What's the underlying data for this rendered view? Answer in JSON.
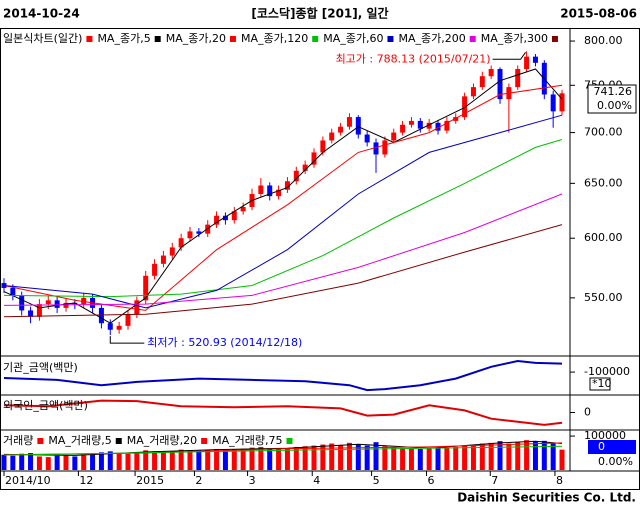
{
  "header": {
    "start": "2014-10-24",
    "title": "[코스닥]종합 [201], 일간",
    "end": "2015-08-06"
  },
  "footer": "Daishin Securities Co. Ltd.",
  "chart_data": [
    {
      "type": "candlestick",
      "name": "일본식차트(일간)",
      "color": "#ff0000",
      "down_color": "#0000ff",
      "log_scale": true,
      "xlim": [
        -0.45,
        63.9
      ],
      "ylim": [
        506,
        813
      ],
      "yticks": [
        {
          "value": 800,
          "label": "800.00"
        },
        {
          "value": 750,
          "label": "750.00"
        },
        {
          "value": 700,
          "label": "700.00"
        },
        {
          "value": 650,
          "label": "650.00"
        },
        {
          "value": 600,
          "label": "600.00"
        },
        {
          "value": 550,
          "label": "550.00"
        }
      ],
      "open": [
        562,
        558,
        552,
        540,
        535,
        545,
        548,
        542,
        546,
        545,
        550,
        542,
        530,
        525,
        528,
        537,
        548,
        568,
        578,
        585,
        592,
        600,
        606,
        604,
        612,
        620,
        616,
        624,
        628,
        640,
        648,
        638,
        644,
        652,
        662,
        668,
        680,
        692,
        700,
        706,
        716,
        698,
        690,
        678,
        692,
        700,
        708,
        712,
        704,
        710,
        702,
        712,
        716,
        738,
        748,
        760,
        768,
        735,
        748,
        768,
        782,
        775,
        740,
        722
      ],
      "high": [
        566,
        561,
        555,
        543,
        549,
        552,
        551,
        550,
        549,
        554,
        553,
        545,
        533,
        531,
        540,
        551,
        572,
        582,
        589,
        596,
        604,
        610,
        609,
        616,
        624,
        623,
        628,
        632,
        645,
        655,
        651,
        648,
        656,
        666,
        672,
        684,
        696,
        704,
        710,
        720,
        718,
        702,
        694,
        696,
        704,
        712,
        716,
        715,
        714,
        713,
        716,
        720,
        742,
        752,
        765,
        772,
        770,
        752,
        772,
        788.13,
        785,
        778,
        744,
        745
      ],
      "low": [
        554,
        548,
        536,
        530,
        532,
        541,
        538,
        539,
        541,
        542,
        538,
        526,
        520.93,
        522,
        525,
        534,
        545,
        565,
        575,
        582,
        589,
        597,
        601,
        601,
        609,
        612,
        613,
        621,
        625,
        637,
        634,
        635,
        641,
        649,
        659,
        665,
        677,
        689,
        697,
        703,
        694,
        686,
        660,
        675,
        689,
        697,
        705,
        700,
        701,
        698,
        699,
        709,
        713,
        735,
        745,
        757,
        730,
        700,
        745,
        765,
        771,
        735,
        705,
        718
      ],
      "close": [
        558,
        552,
        540,
        535,
        545,
        548,
        542,
        546,
        545,
        550,
        542,
        530,
        525,
        528,
        537,
        548,
        568,
        578,
        585,
        592,
        600,
        606,
        604,
        612,
        620,
        616,
        624,
        628,
        640,
        648,
        638,
        644,
        652,
        662,
        668,
        680,
        692,
        700,
        706,
        716,
        698,
        690,
        678,
        692,
        700,
        708,
        712,
        704,
        710,
        702,
        712,
        716,
        738,
        748,
        760,
        768,
        735,
        748,
        768,
        782,
        775,
        740,
        722,
        741.26
      ],
      "change_label": "0.00%",
      "series": [
        {
          "name": "MA_종가,5",
          "color": "#000000",
          "x": [
            0,
            4,
            8,
            12,
            16,
            20,
            24,
            28,
            32,
            36,
            40,
            44,
            48,
            52,
            56,
            60,
            63
          ],
          "values": [
            555,
            542,
            546,
            530,
            550,
            592,
            614,
            634,
            646,
            680,
            706,
            690,
            708,
            726,
            755,
            768,
            735
          ]
        },
        {
          "name": "MA_종가,20",
          "color": "#ff0000",
          "x": [
            0,
            8,
            16,
            24,
            32,
            40,
            48,
            56,
            63
          ],
          "values": [
            560,
            548,
            540,
            590,
            630,
            680,
            700,
            740,
            750
          ]
        },
        {
          "name": "MA_종가,120",
          "color": "#00c000",
          "x": [
            0,
            12,
            20,
            28,
            36,
            44,
            52,
            60,
            63
          ],
          "values": [
            552,
            551,
            553,
            560,
            585,
            618,
            650,
            685,
            693
          ]
        },
        {
          "name": "MA_종가,60",
          "color": "#0000c0",
          "x": [
            0,
            10,
            16,
            24,
            32,
            40,
            48,
            56,
            63
          ],
          "values": [
            560,
            553,
            542,
            556,
            590,
            640,
            680,
            700,
            718
          ]
        },
        {
          "name": "MA_종가,200",
          "color": "#e000e0",
          "x": [
            0,
            16,
            28,
            40,
            52,
            63
          ],
          "values": [
            544,
            545,
            552,
            575,
            605,
            640
          ]
        },
        {
          "name": "MA_종가,300",
          "color": "#800000",
          "x": [
            0,
            16,
            28,
            40,
            52,
            63
          ],
          "values": [
            535,
            537,
            545,
            562,
            588,
            612
          ]
        }
      ],
      "annotations": [
        {
          "text": "최고가 : 788.13 (2015/07/21)",
          "color": "#ff0000"
        },
        {
          "text": "최저가 : 520.93 (2014/12/18)",
          "color": "#0000ff"
        }
      ]
    },
    {
      "type": "line",
      "name": "기관_금액(백만)",
      "xlim": [
        -0.45,
        63.9
      ],
      "ylim": [
        -260000,
        0
      ],
      "yticks": [
        -100000
      ],
      "multiplier": "*10",
      "series": [
        {
          "color": "#0000c0",
          "x": [
            0,
            6,
            11,
            15,
            22,
            28,
            34,
            39,
            41,
            43,
            47,
            51,
            55,
            58,
            60,
            63
          ],
          "values": [
            -145000,
            -160000,
            -200000,
            -175000,
            -150000,
            -160000,
            -170000,
            -200000,
            -238000,
            -230000,
            -200000,
            -150000,
            -60000,
            -15000,
            -30000,
            -35000
          ]
        }
      ]
    },
    {
      "type": "line",
      "name": "외국인_금액(백만)",
      "xlim": [
        -0.45,
        63.9
      ],
      "ylim": [
        -150000,
        150000
      ],
      "yticks": [
        0
      ],
      "series": [
        {
          "color": "#e00000",
          "x": [
            0,
            5,
            11,
            15,
            20,
            26,
            32,
            38,
            41,
            44,
            48,
            52,
            55,
            58,
            61,
            63
          ],
          "values": [
            70000,
            60000,
            115000,
            110000,
            60000,
            50000,
            60000,
            40000,
            -30000,
            -20000,
            70000,
            20000,
            -60000,
            -90000,
            -120000,
            -100000
          ]
        }
      ]
    },
    {
      "type": "bar",
      "name": "거래량",
      "color": "#ff0000",
      "down_color": "#0000ff",
      "xlim": [
        -0.45,
        63.9
      ],
      "ylim": [
        0,
        112000
      ],
      "yticks": [
        100000
      ],
      "side_labels": [
        "0",
        "0.00%"
      ],
      "values": [
        45000,
        42000,
        48000,
        50000,
        40000,
        38000,
        42000,
        44000,
        40000,
        43000,
        46000,
        52000,
        55000,
        50000,
        48000,
        52000,
        58000,
        55000,
        54000,
        56000,
        60000,
        58000,
        57000,
        60000,
        62000,
        59000,
        61000,
        63000,
        66000,
        68000,
        64000,
        62000,
        65000,
        68000,
        70000,
        72000,
        75000,
        78000,
        74000,
        80000,
        76000,
        72000,
        82000,
        70000,
        66000,
        65000,
        64000,
        62000,
        63000,
        64000,
        66000,
        68000,
        72000,
        74000,
        78000,
        80000,
        85000,
        78000,
        82000,
        88000,
        84000,
        86000,
        80000,
        60000
      ],
      "series": [
        {
          "name": "MA_거래량,5",
          "color": "#000000",
          "x": [
            0,
            8,
            16,
            24,
            32,
            40,
            48,
            56,
            60,
            63
          ],
          "values": [
            46000,
            43000,
            53000,
            60000,
            64000,
            76000,
            64000,
            80000,
            85000,
            78000
          ]
        },
        {
          "name": "MA_거래량,20",
          "color": "#ff0000",
          "x": [
            0,
            16,
            32,
            48,
            63
          ],
          "values": [
            45000,
            50000,
            63000,
            68000,
            80000
          ]
        },
        {
          "name": "MA_거래량,75",
          "color": "#00c000",
          "x": [
            0,
            32,
            63
          ],
          "values": [
            44000,
            58000,
            70000
          ]
        }
      ],
      "xticks": [
        {
          "value": 0,
          "label": "2014/10"
        },
        {
          "value": 8.4,
          "label": "12"
        },
        {
          "value": 14.8,
          "label": "2015"
        },
        {
          "value": 21.5,
          "label": "2"
        },
        {
          "value": 27.5,
          "label": "3"
        },
        {
          "value": 34.8,
          "label": "4"
        },
        {
          "value": 41.5,
          "label": "5"
        },
        {
          "value": 47.7,
          "label": "6"
        },
        {
          "value": 54.9,
          "label": "7"
        },
        {
          "value": 62.2,
          "label": "8"
        }
      ]
    }
  ]
}
